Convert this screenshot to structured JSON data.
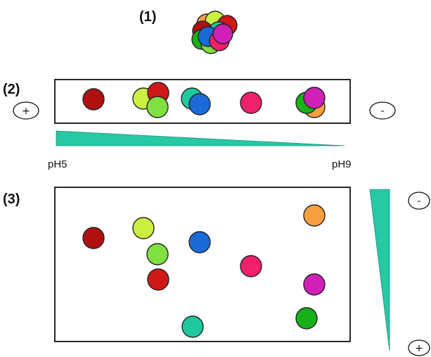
{
  "labels": {
    "step1": "(1)",
    "step2": "(2)",
    "step3": "(3)",
    "ph_low": "pH5",
    "ph_high": "pH9",
    "plus": "+",
    "minus": "-"
  },
  "colors": {
    "wedge": "#27c8a4",
    "red": "#d01818",
    "darkred": "#b01010",
    "lime": "#ccf040",
    "green": "#80e040",
    "teal": "#20c8a0",
    "blue": "#1a6ad8",
    "pink": "#f0206a",
    "magenta": "#d020b8",
    "orange": "#f8a040",
    "darkgreen": "#18b018"
  },
  "spots": [
    {
      "id": "darkred",
      "color": "darkred"
    },
    {
      "id": "lime",
      "color": "lime"
    },
    {
      "id": "green",
      "color": "green"
    },
    {
      "id": "red",
      "color": "red"
    },
    {
      "id": "teal",
      "color": "teal"
    },
    {
      "id": "blue",
      "color": "blue"
    },
    {
      "id": "pink",
      "color": "pink"
    },
    {
      "id": "orange",
      "color": "orange"
    },
    {
      "id": "darkgreen",
      "color": "darkgreen"
    },
    {
      "id": "magenta",
      "color": "magenta"
    }
  ]
}
